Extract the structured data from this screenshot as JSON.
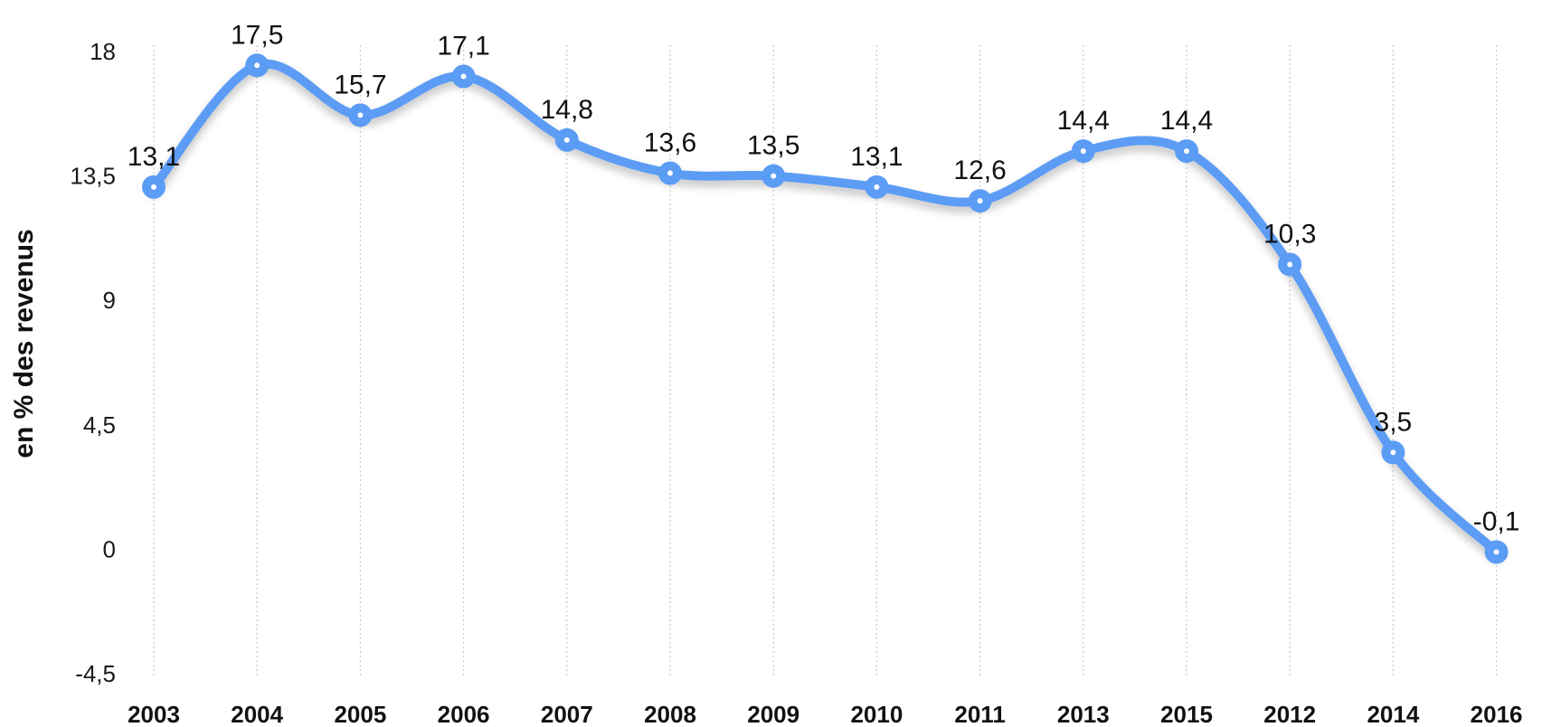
{
  "chart_data": {
    "type": "line",
    "ylabel": "en % des revenus",
    "categories": [
      "2003",
      "2004",
      "2005",
      "2006",
      "2007",
      "2008",
      "2009",
      "2010",
      "2011",
      "2013",
      "2015",
      "2012",
      "2014",
      "2016"
    ],
    "series": [
      {
        "values": [
          13.1,
          17.5,
          15.7,
          17.1,
          14.8,
          13.6,
          13.5,
          13.1,
          12.6,
          14.4,
          14.4,
          10.3,
          3.5,
          -0.1
        ],
        "data_labels": [
          "13,1",
          "17,5",
          "15,7",
          "17,1",
          "14,8",
          "13,6",
          "13,5",
          "13,1",
          "12,6",
          "14,4",
          "14,4",
          "10,3",
          "3,5",
          "-0,1"
        ]
      }
    ],
    "yticks": [
      18,
      13.5,
      9,
      4.5,
      0,
      -4.5
    ],
    "ytick_labels": [
      "18",
      "13,5",
      "9",
      "4,5",
      "0",
      "-4,5"
    ],
    "ylim": [
      -4.5,
      18
    ],
    "grid": "vertical dotted",
    "line_color": "#5B9CF5",
    "smooth": true
  }
}
